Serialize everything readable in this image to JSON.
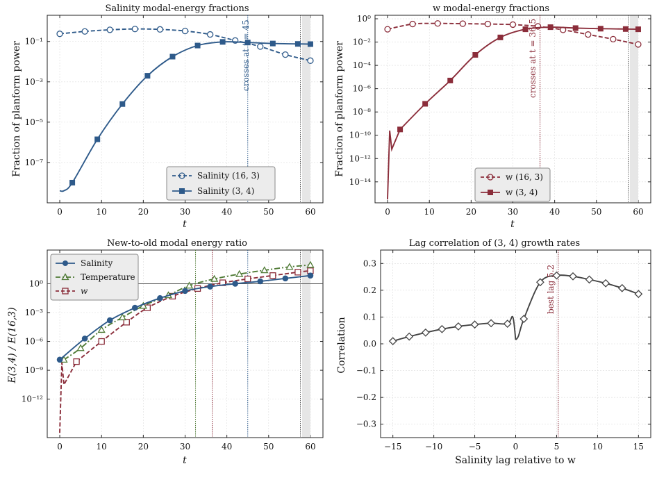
{
  "panels": {
    "p1": {
      "title": "Salinity modal-energy fractions",
      "xlabel": "t",
      "ylabel": "Fraction of planform power",
      "annotation": "crosses at t = 45",
      "legend": [
        "Salinity (16, 3)",
        "Salinity (3, 4)"
      ],
      "xticks": [
        "0",
        "10",
        "20",
        "30",
        "40",
        "50",
        "60"
      ],
      "yticks": [
        "10⁻⁷",
        "10⁻⁵",
        "10⁻³",
        "10⁻¹"
      ]
    },
    "p2": {
      "title": "w modal-energy fractions",
      "xlabel": "t",
      "ylabel": "Fraction of planform power",
      "annotation": "crosses at t = 36.5",
      "legend": [
        "w (16, 3)",
        "w (3, 4)"
      ],
      "xticks": [
        "0",
        "10",
        "20",
        "30",
        "40",
        "50",
        "60"
      ],
      "yticks": [
        "10⁻¹⁴",
        "10⁻¹²",
        "10⁻¹⁰",
        "10⁻⁸",
        "10⁻⁶",
        "10⁻⁴",
        "10⁻²",
        "10⁰"
      ]
    },
    "p3": {
      "title": "New-to-old modal energy ratio",
      "xlabel": "t",
      "ylabel": "E(3,4) / E(16,3)",
      "legend": [
        "Salinity",
        "Temperature",
        "w"
      ],
      "xticks": [
        "0",
        "10",
        "20",
        "30",
        "40",
        "50",
        "60"
      ],
      "yticks": [
        "10⁻¹²",
        "10⁻⁹",
        "10⁻⁶",
        "10⁻³",
        "10⁰"
      ]
    },
    "p4": {
      "title": "Lag correlation of (3, 4) growth rates",
      "xlabel": "Salinity lag relative to w",
      "ylabel": "Correlation",
      "annotation": "best lag 5.2",
      "xticks": [
        "−15",
        "−10",
        "−5",
        "0",
        "5",
        "10",
        "15"
      ],
      "yticks": [
        "−0.3",
        "−0.2",
        "−0.1",
        "0.0",
        "0.1",
        "0.2",
        "0.3"
      ]
    }
  },
  "colors": {
    "salinity": "#2e5a8a",
    "w": "#8b2d3a",
    "temperature": "#4f7a35",
    "lag": "#444444"
  },
  "chart_data": [
    {
      "type": "line",
      "title": "Salinity modal-energy fractions",
      "xlabel": "t",
      "ylabel": "Fraction of planform power",
      "yscale": "log",
      "xlim": [
        -3,
        63
      ],
      "ylim_log10": [
        -9,
        0.3
      ],
      "series": [
        {
          "name": "Salinity (16, 3)",
          "style": "dashed-open-circle",
          "x": [
            0,
            6,
            12,
            18,
            24,
            30,
            36,
            42,
            48,
            54,
            60
          ],
          "log10_y": [
            -0.62,
            -0.5,
            -0.42,
            -0.38,
            -0.4,
            -0.48,
            -0.65,
            -0.95,
            -1.25,
            -1.65,
            -1.95
          ]
        },
        {
          "name": "Salinity (3, 4)",
          "style": "solid-square",
          "x": [
            0,
            1,
            3,
            9,
            15,
            21,
            27,
            33,
            39,
            45,
            51,
            57,
            60
          ],
          "log10_y": [
            -8.4,
            -8.4,
            -8.0,
            -5.85,
            -4.1,
            -2.7,
            -1.75,
            -1.2,
            -1.02,
            -1.05,
            -1.1,
            -1.12,
            -1.13
          ]
        }
      ],
      "vlines": [
        45,
        57.6
      ],
      "shaded": [
        58,
        60
      ]
    },
    {
      "type": "line",
      "title": "w modal-energy fractions",
      "xlabel": "t",
      "ylabel": "Fraction of planform power",
      "yscale": "log",
      "xlim": [
        -3,
        63
      ],
      "ylim_log10": [
        -15.8,
        0.3
      ],
      "series": [
        {
          "name": "w (16, 3)",
          "style": "dashed-open-circle",
          "x": [
            0,
            6,
            12,
            18,
            24,
            30,
            36,
            42,
            48,
            54,
            60
          ],
          "log10_y": [
            -0.9,
            -0.45,
            -0.4,
            -0.42,
            -0.45,
            -0.5,
            -0.65,
            -0.95,
            -1.35,
            -1.75,
            -2.2
          ]
        },
        {
          "name": "w (3, 4)",
          "style": "solid-square",
          "x": [
            0,
            0.5,
            1,
            3,
            9,
            15,
            21,
            27,
            33,
            39,
            45,
            51,
            57,
            60
          ],
          "log10_y": [
            -15.5,
            -9.6,
            -11.2,
            -9.5,
            -7.3,
            -5.3,
            -3.1,
            -1.6,
            -0.9,
            -0.72,
            -0.8,
            -0.85,
            -0.88,
            -0.9
          ]
        }
      ],
      "vlines": [
        36.5,
        57.6
      ],
      "shaded": [
        58,
        60
      ]
    },
    {
      "type": "line",
      "title": "New-to-old modal energy ratio",
      "xlabel": "t",
      "ylabel": "E(3,4) / E(16,3)",
      "yscale": "log",
      "xlim": [
        -3,
        63
      ],
      "ylim_log10": [
        -16,
        3.5
      ],
      "series": [
        {
          "name": "Salinity",
          "style": "solid-filled-circle",
          "x": [
            0,
            6,
            12,
            18,
            24,
            30,
            36,
            42,
            48,
            54,
            60
          ],
          "log10_y": [
            -7.9,
            -5.7,
            -3.8,
            -2.5,
            -1.5,
            -0.75,
            -0.3,
            0.0,
            0.25,
            0.55,
            0.85
          ]
        },
        {
          "name": "Temperature",
          "style": "dashdot-open-triangle",
          "x": [
            1,
            5,
            10,
            15,
            20,
            26,
            31,
            37,
            43,
            49,
            55,
            60
          ],
          "log10_y": [
            -7.9,
            -6.7,
            -4.8,
            -3.5,
            -2.3,
            -1.2,
            -0.2,
            0.5,
            1.0,
            1.4,
            1.75,
            1.95
          ]
        },
        {
          "name": "w",
          "style": "dashed-open-square",
          "x": [
            0,
            0.5,
            1,
            4,
            10,
            16,
            21,
            27,
            33,
            39,
            45,
            51,
            57,
            60
          ],
          "log10_y": [
            -15.5,
            -8.2,
            -10.5,
            -8.1,
            -6.0,
            -4.0,
            -2.5,
            -1.3,
            -0.5,
            0.1,
            0.5,
            0.85,
            1.2,
            1.35
          ]
        }
      ],
      "hline": 0,
      "vlines": [
        32.5,
        36.5,
        45,
        57.6
      ],
      "shaded": [
        58,
        60
      ]
    },
    {
      "type": "line",
      "title": "Lag correlation of (3, 4) growth rates",
      "xlabel": "Salinity lag relative to w",
      "ylabel": "Correlation",
      "xlim": [
        -16.5,
        16.5
      ],
      "ylim": [
        -0.35,
        0.35
      ],
      "series": [
        {
          "name": "",
          "style": "solid-open-diamond",
          "x": [
            -15,
            -13,
            -11,
            -9,
            -7,
            -5,
            -3,
            -1,
            1,
            3,
            5,
            7,
            9,
            11,
            13,
            15
          ],
          "y": [
            0.01,
            0.027,
            0.042,
            0.055,
            0.065,
            0.072,
            0.077,
            0.075,
            0.093,
            0.23,
            0.255,
            0.252,
            0.24,
            0.226,
            0.208,
            0.186
          ]
        }
      ],
      "vline": 5.2
    }
  ]
}
